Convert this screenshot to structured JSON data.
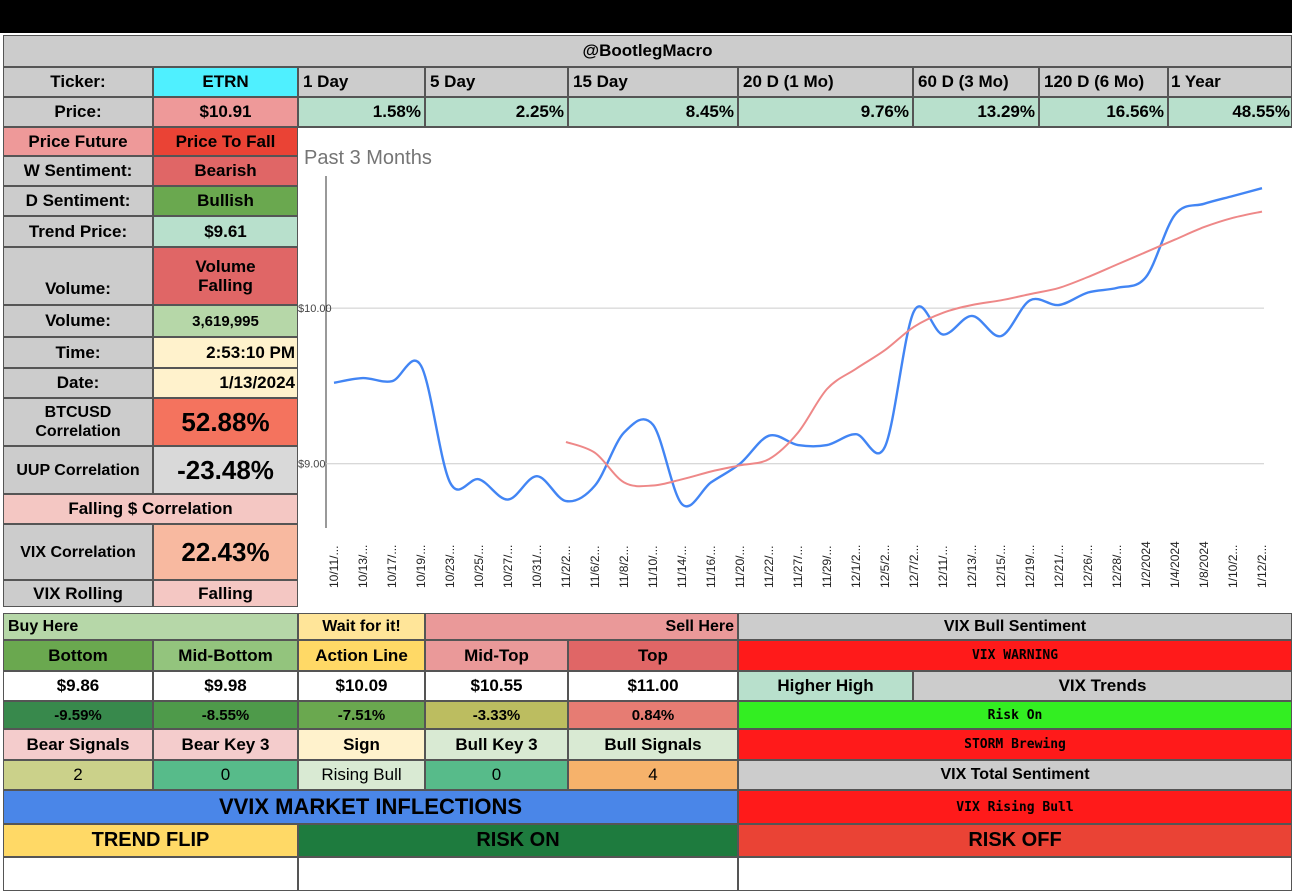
{
  "header": {
    "title": "@BootlegMacro"
  },
  "ticker_row": {
    "label": "Ticker:",
    "value": "ETRN",
    "periods": [
      "1 Day",
      "5 Day",
      "15 Day",
      "20 D (1 Mo)",
      "60 D (3 Mo)",
      "120 D (6 Mo)",
      "1 Year"
    ]
  },
  "price_row": {
    "label": "Price:",
    "value": "$10.91",
    "changes": [
      "1.58%",
      "2.25%",
      "8.45%",
      "9.76%",
      "13.29%",
      "16.56%",
      "48.55%"
    ]
  },
  "left_panel": {
    "price_future": {
      "label": "Price Future",
      "value": "Price To Fall"
    },
    "w_sentiment": {
      "label": "W Sentiment:",
      "value": "Bearish"
    },
    "d_sentiment": {
      "label": "D Sentiment:",
      "value": "Bullish"
    },
    "trend_price": {
      "label": "Trend Price:",
      "value": "$9.61"
    },
    "volume_trend": {
      "label": "Volume:",
      "value": "Volume Falling"
    },
    "volume": {
      "label": "Volume:",
      "value": "3,619,995"
    },
    "time": {
      "label": "Time:",
      "value": "2:53:10 PM"
    },
    "date": {
      "label": "Date:",
      "value": "1/13/2024"
    },
    "btc_corr": {
      "label": "BTCUSD Correlation",
      "value": "52.88%"
    },
    "uup_corr": {
      "label": "UUP Correlation",
      "value": "-23.48%"
    },
    "falling_corr": {
      "label": "Falling $ Correlation"
    },
    "vix_corr": {
      "label": "VIX Correlation",
      "value": "22.43%"
    },
    "vix_rolling": {
      "label": "VIX Rolling",
      "value": "Falling"
    }
  },
  "levels": {
    "buy_here": "Buy Here",
    "wait": "Wait for it!",
    "sell_here": "Sell Here",
    "headers": [
      "Bottom",
      "Mid-Bottom",
      "Action Line",
      "Mid-Top",
      "Top"
    ],
    "prices": [
      "$9.86",
      "$9.98",
      "$10.09",
      "$10.55",
      "$11.00"
    ],
    "pcts": [
      "-9.59%",
      "-8.55%",
      "-7.51%",
      "-3.33%",
      "0.84%"
    ],
    "signal_headers": [
      "Bear Signals",
      "Bear Key 3",
      "Sign",
      "Bull Key 3",
      "Bull Signals"
    ],
    "signal_values": [
      "2",
      "0",
      "Rising Bull",
      "0",
      "4"
    ]
  },
  "vix": {
    "bull_sentiment": "VIX Bull Sentiment",
    "warning": "VIX WARNING",
    "higher_high": "Higher High",
    "trends": "VIX Trends",
    "risk_on": "Risk On",
    "storm": "STORM Brewing",
    "total_sentiment": "VIX Total Sentiment",
    "rising_bull": "VIX Rising Bull"
  },
  "inflections": {
    "title": "VVIX MARKET INFLECTIONS",
    "trend_flip": "TREND FLIP",
    "risk_on": "RISK ON",
    "risk_off": "RISK OFF"
  },
  "colors": {
    "cyan": "#4ff0ff",
    "pink": "#ee9999",
    "mint": "#b8e0cc",
    "red": "#ea4335",
    "salmon": "#e06666",
    "green": "#6aa84f",
    "light_green": "#b6d7a8",
    "grey": "#cccccc",
    "cream": "#fff2cc",
    "blue": "#4a86e8",
    "yellow": "#ffd966",
    "dark_green": "#1e7b3e",
    "bright_red": "#ff1a1a",
    "bright_green": "#33ee22"
  },
  "chart_data": {
    "type": "line",
    "title": "Past 3 Months",
    "y_ticks": [
      "$10.00",
      "$9.00"
    ],
    "ylim": [
      8.6,
      10.9
    ],
    "x_labels": [
      "10/11/...",
      "10/13/...",
      "10/17/...",
      "10/19/...",
      "10/23/...",
      "10/25/...",
      "10/27/...",
      "10/31/...",
      "11/2/2...",
      "11/6/2...",
      "11/8/2...",
      "11/10/...",
      "11/14/...",
      "11/16/...",
      "11/20/...",
      "11/22/...",
      "11/27/...",
      "11/29/...",
      "12/1/2...",
      "12/5/2...",
      "12/7/2...",
      "12/11/...",
      "12/13/...",
      "12/15/...",
      "12/19/...",
      "12/21/...",
      "12/26/...",
      "12/28/...",
      "1/2/2024",
      "1/4/2024",
      "1/8/2024",
      "1/10/2...",
      "1/12/2..."
    ],
    "series": [
      {
        "color": "#4285f4",
        "values": [
          9.52,
          9.55,
          9.53,
          9.63,
          8.88,
          8.9,
          8.77,
          8.92,
          8.76,
          8.86,
          9.2,
          9.25,
          8.74,
          8.88,
          9.0,
          9.18,
          9.12,
          9.12,
          9.19,
          9.11,
          9.98,
          9.83,
          9.95,
          9.82,
          10.05,
          10.02,
          10.1,
          10.13,
          10.2,
          10.6,
          10.67,
          10.72,
          10.77
        ]
      },
      {
        "color": "#ee8888",
        "values": [
          null,
          null,
          null,
          null,
          null,
          null,
          null,
          null,
          9.14,
          9.07,
          8.88,
          8.86,
          8.9,
          8.95,
          8.99,
          9.03,
          9.2,
          9.48,
          9.61,
          9.73,
          9.88,
          9.97,
          10.02,
          10.05,
          10.09,
          10.13,
          10.2,
          10.28,
          10.36,
          10.44,
          10.52,
          10.58,
          10.62
        ]
      }
    ]
  }
}
